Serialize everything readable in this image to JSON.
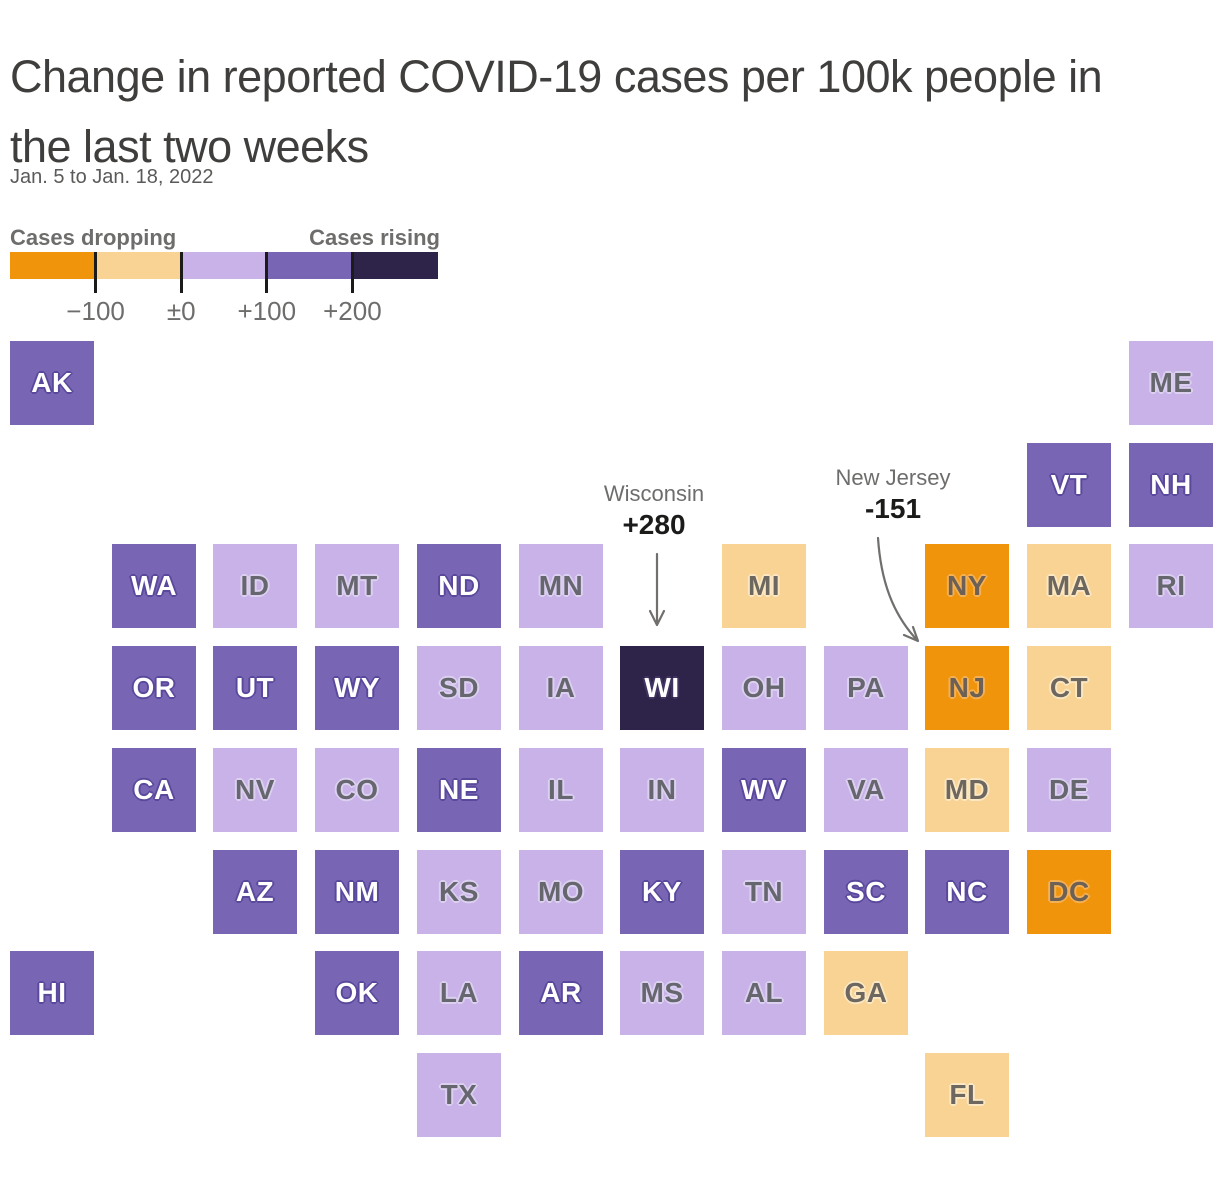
{
  "header": {
    "title": "Change in reported COVID-19 cases per 100k people in the last two weeks",
    "subtitle": "Jan. 5 to Jan. 18, 2022"
  },
  "legend": {
    "left_label": "Cases dropping",
    "right_label": "Cases rising",
    "ticks": [
      "−100",
      "±0",
      "+100",
      "+200"
    ],
    "colors": {
      "orange": "#F0940B",
      "light_orange": "#F8D394",
      "light_purple": "#C8B2E8",
      "purple": "#7866B5",
      "dark": "#2E2348"
    }
  },
  "annotations": [
    {
      "state": "WI",
      "label": "Wisconsin",
      "value": "+280"
    },
    {
      "state": "NJ",
      "label": "New Jersey",
      "value": "-151"
    }
  ],
  "chart_data": {
    "type": "heatmap",
    "subtype": "us-state-tile-cartogram",
    "title": "Change in reported COVID-19 cases per 100k people in the last two weeks",
    "date_range": "Jan. 5 to Jan. 18, 2022",
    "unit": "change in reported cases per 100k people",
    "bins": [
      {
        "bucket": "orange",
        "range": "below −100",
        "color": "#F0940B"
      },
      {
        "bucket": "light_orange",
        "range": "−100 to ±0",
        "color": "#F8D394"
      },
      {
        "bucket": "light_purple",
        "range": "±0 to +100",
        "color": "#C8B2E8"
      },
      {
        "bucket": "purple",
        "range": "+100 to +200",
        "color": "#7866B5"
      },
      {
        "bucket": "dark",
        "range": "above +200",
        "color": "#2E2348"
      }
    ],
    "annotated_values": {
      "WI": 280,
      "NJ": -151
    },
    "states": [
      {
        "abbr": "AK",
        "row": 1,
        "col": 1,
        "bucket": "purple"
      },
      {
        "abbr": "ME",
        "row": 1,
        "col": 12,
        "bucket": "light_purple"
      },
      {
        "abbr": "VT",
        "row": 2,
        "col": 11,
        "bucket": "purple"
      },
      {
        "abbr": "NH",
        "row": 2,
        "col": 12,
        "bucket": "purple"
      },
      {
        "abbr": "WA",
        "row": 3,
        "col": 2,
        "bucket": "purple"
      },
      {
        "abbr": "ID",
        "row": 3,
        "col": 3,
        "bucket": "light_purple"
      },
      {
        "abbr": "MT",
        "row": 3,
        "col": 4,
        "bucket": "light_purple"
      },
      {
        "abbr": "ND",
        "row": 3,
        "col": 5,
        "bucket": "purple"
      },
      {
        "abbr": "MN",
        "row": 3,
        "col": 6,
        "bucket": "light_purple"
      },
      {
        "abbr": "MI",
        "row": 3,
        "col": 8,
        "bucket": "light_orange"
      },
      {
        "abbr": "NY",
        "row": 3,
        "col": 10,
        "bucket": "orange"
      },
      {
        "abbr": "MA",
        "row": 3,
        "col": 11,
        "bucket": "light_orange"
      },
      {
        "abbr": "RI",
        "row": 3,
        "col": 12,
        "bucket": "light_purple"
      },
      {
        "abbr": "OR",
        "row": 4,
        "col": 2,
        "bucket": "purple"
      },
      {
        "abbr": "UT",
        "row": 4,
        "col": 3,
        "bucket": "purple"
      },
      {
        "abbr": "WY",
        "row": 4,
        "col": 4,
        "bucket": "purple"
      },
      {
        "abbr": "SD",
        "row": 4,
        "col": 5,
        "bucket": "light_purple"
      },
      {
        "abbr": "IA",
        "row": 4,
        "col": 6,
        "bucket": "light_purple"
      },
      {
        "abbr": "WI",
        "row": 4,
        "col": 7,
        "bucket": "dark",
        "value": "+280"
      },
      {
        "abbr": "OH",
        "row": 4,
        "col": 8,
        "bucket": "light_purple"
      },
      {
        "abbr": "PA",
        "row": 4,
        "col": 9,
        "bucket": "light_purple"
      },
      {
        "abbr": "NJ",
        "row": 4,
        "col": 10,
        "bucket": "orange",
        "value": "-151"
      },
      {
        "abbr": "CT",
        "row": 4,
        "col": 11,
        "bucket": "light_orange"
      },
      {
        "abbr": "CA",
        "row": 5,
        "col": 2,
        "bucket": "purple"
      },
      {
        "abbr": "NV",
        "row": 5,
        "col": 3,
        "bucket": "light_purple"
      },
      {
        "abbr": "CO",
        "row": 5,
        "col": 4,
        "bucket": "light_purple"
      },
      {
        "abbr": "NE",
        "row": 5,
        "col": 5,
        "bucket": "purple"
      },
      {
        "abbr": "IL",
        "row": 5,
        "col": 6,
        "bucket": "light_purple"
      },
      {
        "abbr": "IN",
        "row": 5,
        "col": 7,
        "bucket": "light_purple"
      },
      {
        "abbr": "WV",
        "row": 5,
        "col": 8,
        "bucket": "purple"
      },
      {
        "abbr": "VA",
        "row": 5,
        "col": 9,
        "bucket": "light_purple"
      },
      {
        "abbr": "MD",
        "row": 5,
        "col": 10,
        "bucket": "light_orange"
      },
      {
        "abbr": "DE",
        "row": 5,
        "col": 11,
        "bucket": "light_purple"
      },
      {
        "abbr": "AZ",
        "row": 6,
        "col": 3,
        "bucket": "purple"
      },
      {
        "abbr": "NM",
        "row": 6,
        "col": 4,
        "bucket": "purple"
      },
      {
        "abbr": "KS",
        "row": 6,
        "col": 5,
        "bucket": "light_purple"
      },
      {
        "abbr": "MO",
        "row": 6,
        "col": 6,
        "bucket": "light_purple"
      },
      {
        "abbr": "KY",
        "row": 6,
        "col": 7,
        "bucket": "purple"
      },
      {
        "abbr": "TN",
        "row": 6,
        "col": 8,
        "bucket": "light_purple"
      },
      {
        "abbr": "SC",
        "row": 6,
        "col": 9,
        "bucket": "purple"
      },
      {
        "abbr": "NC",
        "row": 6,
        "col": 10,
        "bucket": "purple"
      },
      {
        "abbr": "DC",
        "row": 6,
        "col": 11,
        "bucket": "orange"
      },
      {
        "abbr": "HI",
        "row": 7,
        "col": 1,
        "bucket": "purple"
      },
      {
        "abbr": "OK",
        "row": 7,
        "col": 4,
        "bucket": "purple"
      },
      {
        "abbr": "LA",
        "row": 7,
        "col": 5,
        "bucket": "light_purple"
      },
      {
        "abbr": "AR",
        "row": 7,
        "col": 6,
        "bucket": "purple"
      },
      {
        "abbr": "MS",
        "row": 7,
        "col": 7,
        "bucket": "light_purple"
      },
      {
        "abbr": "AL",
        "row": 7,
        "col": 8,
        "bucket": "light_purple"
      },
      {
        "abbr": "GA",
        "row": 7,
        "col": 9,
        "bucket": "light_orange"
      },
      {
        "abbr": "TX",
        "row": 8,
        "col": 5,
        "bucket": "light_purple"
      },
      {
        "abbr": "FL",
        "row": 8,
        "col": 10,
        "bucket": "light_orange"
      }
    ]
  }
}
